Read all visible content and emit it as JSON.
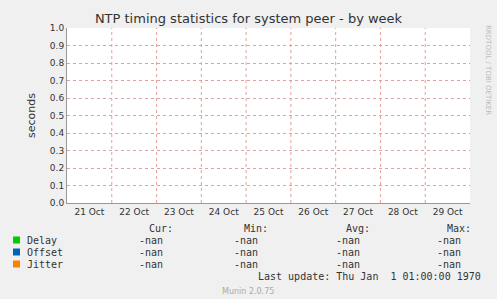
{
  "chart_data": {
    "type": "line",
    "title": "NTP timing statistics for system peer - by week",
    "y_label": "seconds",
    "categories": [
      "21 Oct",
      "22 Oct",
      "23 Oct",
      "24 Oct",
      "25 Oct",
      "26 Oct",
      "27 Oct",
      "28 Oct",
      "29 Oct"
    ],
    "series": [
      {
        "name": "Delay",
        "color": "#00cc00",
        "values": [
          null,
          null,
          null,
          null,
          null,
          null,
          null,
          null,
          null
        ],
        "stats": [
          "-nan",
          "-nan",
          "-nan",
          "-nan"
        ]
      },
      {
        "name": "Offset",
        "color": "#0066b3",
        "values": [
          null,
          null,
          null,
          null,
          null,
          null,
          null,
          null,
          null
        ],
        "stats": [
          "-nan",
          "-nan",
          "-nan",
          "-nan"
        ]
      },
      {
        "name": "Jitter",
        "color": "#ff8000",
        "values": [
          null,
          null,
          null,
          null,
          null,
          null,
          null,
          null,
          null
        ],
        "stats": [
          "-nan",
          "-nan",
          "-nan",
          "-nan"
        ]
      }
    ],
    "ylim": [
      0,
      1
    ],
    "yticks": [
      {
        "value": 0,
        "label": "0.0"
      },
      0.1,
      0.2,
      0.3,
      0.4,
      0.5,
      0.6,
      0.7,
      0.8,
      0.9,
      {
        "value": 1,
        "label": "1.0"
      }
    ],
    "grid": true,
    "stats_headers": [
      "Cur:",
      "Min:",
      "Avg:",
      "Max:"
    ],
    "footer": "Last update: Thu Jan  1 01:00:00 1970",
    "credit": "Munin 2.0.75",
    "watermark": "RRDTOOL / TOBI OETIKER"
  }
}
